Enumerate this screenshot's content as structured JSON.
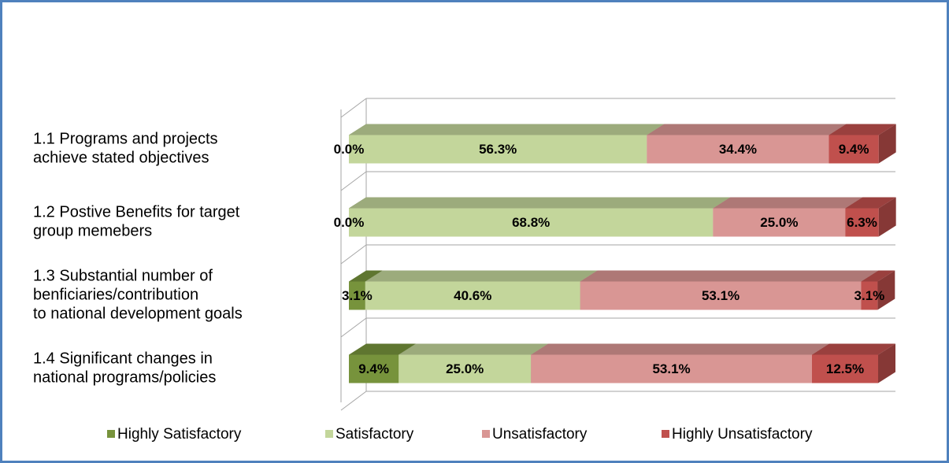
{
  "chart_data": {
    "type": "stacked-bar-3d",
    "categories": [
      "1.1 Programs and projects\nachieve stated objectives",
      "1.2 Postive Benefits for target\ngroup memebers",
      "1.3 Substantial number of\nbenficiaries/contribution\nto national development goals",
      "1.4 Significant changes in\nnational programs/policies"
    ],
    "xlim": [
      0,
      100
    ],
    "series": [
      {
        "name": "Highly Satisfactory",
        "color": "#77933c",
        "values": [
          0,
          0,
          3.1,
          9.4
        ],
        "value_labels": [
          "0.0%",
          "0.0%",
          "3.1%",
          "9.4%"
        ]
      },
      {
        "name": "Satisfactory",
        "color": "#c3d69b",
        "values": [
          56.3,
          68.8,
          40.6,
          25.0
        ],
        "value_labels": [
          "56.3%",
          "68.8%",
          "40.6%",
          "25.0%"
        ]
      },
      {
        "name": "Unsatisfactory",
        "color": "#d99694",
        "values": [
          34.4,
          25.0,
          53.1,
          53.1
        ],
        "value_labels": [
          "34.4%",
          "25.0%",
          "53.1%",
          "53.1%"
        ]
      },
      {
        "name": "Highly Unsatisfactory",
        "color": "#c0504d",
        "values": [
          9.4,
          6.3,
          3.1,
          12.5
        ],
        "value_labels": [
          "9.4%",
          "6.3%",
          "3.1%",
          "12.5%"
        ]
      }
    ],
    "legend": "bottom"
  }
}
